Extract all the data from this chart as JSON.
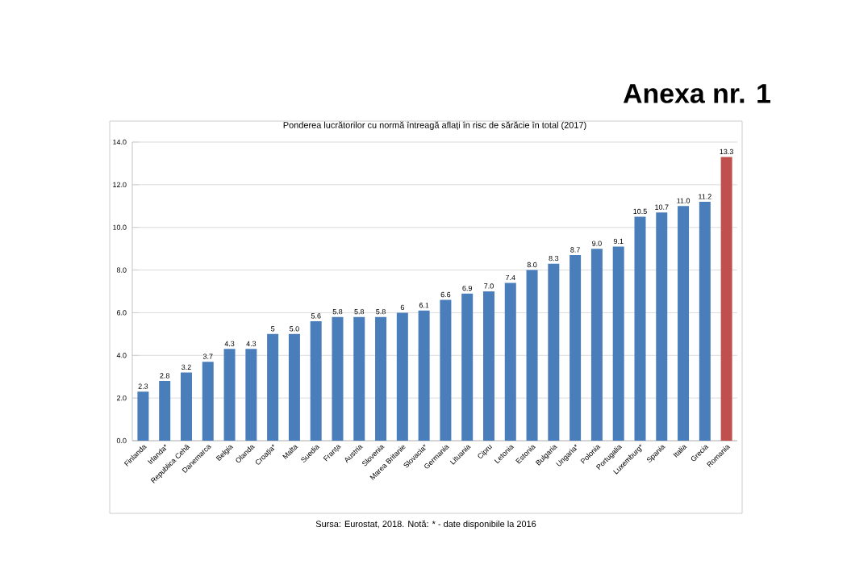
{
  "chart_data": {
    "type": "bar",
    "title": "Anexa nr. 1",
    "subtitle": "Ponderea lucrătorilor cu normă întreagă aflați în risc de sărăcie în total (2017)",
    "categories": [
      "Finlanda",
      "Irlanda*",
      "Republica Cehă",
      "Danemarca",
      "Belgia",
      "Olanda",
      "Croația*",
      "Malta",
      "Suedia",
      "Franța",
      "Austria",
      "Slovenia",
      "Marea Britanie",
      "Slovacia*",
      "Germania",
      "Lituania",
      "Cipru",
      "Letonia",
      "Estonia",
      "Bulgaria",
      "Ungaria*",
      "Polonia",
      "Portugalia",
      "Luxemburg*",
      "Spania",
      "Italia",
      "Grecia",
      "Romania"
    ],
    "values": [
      2.3,
      2.8,
      3.2,
      3.7,
      4.3,
      4.3,
      5,
      5.0,
      5.6,
      5.8,
      5.8,
      5.8,
      6,
      6.1,
      6.6,
      6.9,
      7.0,
      7.4,
      8.0,
      8.3,
      8.7,
      9.0,
      9.1,
      10.5,
      10.7,
      11.0,
      11.2,
      13.3
    ],
    "value_labels": [
      "2.3",
      "2.8",
      "3.2",
      "3.7",
      "4.3",
      "4.3",
      "5",
      "5.0",
      "5.6",
      "5.8",
      "5.8",
      "5.8",
      "6",
      "6.1",
      "6.6",
      "6.9",
      "7.0",
      "7.4",
      "8.0",
      "8.3",
      "8.7",
      "9.0",
      "9.1",
      "10.5",
      "10.7",
      "11.0",
      "11.2",
      "13.3"
    ],
    "colors": [
      "#4a7ebb",
      "#4a7ebb",
      "#4a7ebb",
      "#4a7ebb",
      "#4a7ebb",
      "#4a7ebb",
      "#4a7ebb",
      "#4a7ebb",
      "#4a7ebb",
      "#4a7ebb",
      "#4a7ebb",
      "#4a7ebb",
      "#4a7ebb",
      "#4a7ebb",
      "#4a7ebb",
      "#4a7ebb",
      "#4a7ebb",
      "#4a7ebb",
      "#4a7ebb",
      "#4a7ebb",
      "#4a7ebb",
      "#4a7ebb",
      "#4a7ebb",
      "#4a7ebb",
      "#4a7ebb",
      "#4a7ebb",
      "#4a7ebb",
      "#c0504d"
    ],
    "ylim": [
      0,
      14
    ],
    "yticks": [
      {
        "value": 0,
        "label": "0.0"
      },
      {
        "value": 2,
        "label": "2.0"
      },
      {
        "value": 4,
        "label": "4.0"
      },
      {
        "value": 6,
        "label": "6.0"
      },
      {
        "value": 8,
        "label": "8.0"
      },
      {
        "value": 10,
        "label": "10.0"
      },
      {
        "value": 12,
        "label": "12.0"
      },
      {
        "value": 14,
        "label": "14.0"
      }
    ],
    "grid": "y",
    "annotations": [
      "Sursa: Eurostat, 2018. Notă: * - date disponibile la 2016"
    ]
  }
}
